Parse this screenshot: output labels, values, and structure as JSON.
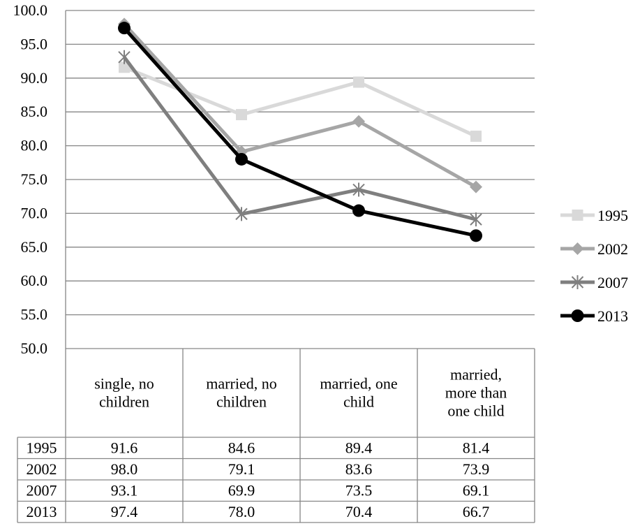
{
  "chart_data": {
    "type": "line",
    "categories": [
      [
        "single, no",
        "children"
      ],
      [
        "married, no",
        "children"
      ],
      [
        "married, one",
        "child"
      ],
      [
        "married,",
        "more than",
        "one child"
      ]
    ],
    "ylim": [
      50.0,
      100.0
    ],
    "y_ticks": [
      "100.0",
      "95.0",
      "90.0",
      "85.0",
      "80.0",
      "75.0",
      "70.0",
      "65.0",
      "60.0",
      "55.0",
      "50.0"
    ],
    "grid": "horizontal",
    "legend_position": "right",
    "data_table": true,
    "series": [
      {
        "name": "1995",
        "values": [
          91.6,
          84.6,
          89.4,
          81.4
        ],
        "labels": [
          "91.6",
          "84.6",
          "89.4",
          "81.4"
        ],
        "color": "#d9d9d9",
        "marker": "square"
      },
      {
        "name": "2002",
        "values": [
          98.0,
          79.1,
          83.6,
          73.9
        ],
        "labels": [
          "98.0",
          "79.1",
          "83.6",
          "73.9"
        ],
        "color": "#a6a6a6",
        "marker": "diamond"
      },
      {
        "name": "2007",
        "values": [
          93.1,
          69.9,
          73.5,
          69.1
        ],
        "labels": [
          "93.1",
          "69.9",
          "73.5",
          "69.1"
        ],
        "color": "#7f7f7f",
        "marker": "star"
      },
      {
        "name": "2013",
        "values": [
          97.4,
          78.0,
          70.4,
          66.7
        ],
        "labels": [
          "97.4",
          "78.0",
          "70.4",
          "66.7"
        ],
        "color": "#000000",
        "marker": "circle"
      }
    ]
  }
}
